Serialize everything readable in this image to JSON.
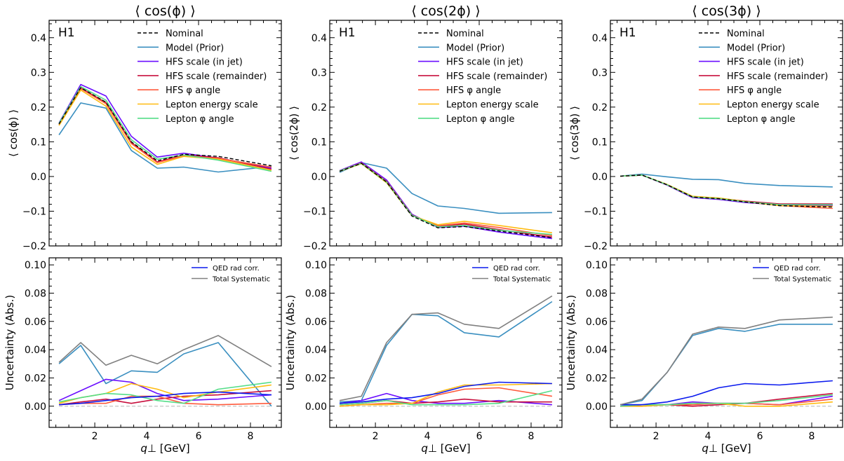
{
  "chart_data": {
    "type": "line",
    "x": [
      0.62,
      1.46,
      2.43,
      3.41,
      4.41,
      5.43,
      6.76,
      8.81
    ],
    "xlabel": "q⊥ [GeV]",
    "xlim": [
      0.24,
      9.19
    ],
    "xticks": [
      2,
      4,
      6,
      8
    ],
    "experiment_label": "H1",
    "colors": {
      "Nominal": "#000000",
      "Model (Prior)": "#3a8fc0",
      "HFS scale (in jet)": "#6a0dff",
      "HFS scale (remainder)": "#c8103e",
      "HFS φ angle": "#ff5a3c",
      "Lepton energy scale": "#ffbb11",
      "Lepton φ angle": "#55dd88",
      "QED rad corr.": "#0a1aee",
      "Total Systematic": "#808080",
      "zero_line": "#cccccc"
    },
    "panels": [
      {
        "title": "⟨ cos(ϕ) ⟩",
        "top": {
          "ylabel": "⟨ cos(ϕ) ⟩",
          "ylim": [
            -0.2,
            0.45
          ],
          "yticks": [
            -0.2,
            -0.1,
            0.0,
            0.1,
            0.2,
            0.3,
            0.4
          ],
          "ytick_labels": [
            "−0.2",
            "−0.1",
            "0.0",
            "0.1",
            "0.2",
            "0.3",
            "0.4"
          ],
          "legend": [
            "Nominal",
            "Model (Prior)",
            "HFS scale (in jet)",
            "HFS scale (remainder)",
            "HFS φ angle",
            "Lepton energy scale",
            "Lepton φ angle"
          ],
          "legend_position": "top-right",
          "series": [
            {
              "name": "Model (Prior)",
              "values": [
                0.12,
                0.212,
                0.197,
                0.075,
                0.024,
                0.027,
                0.013,
                0.029
              ]
            },
            {
              "name": "HFS scale (in jet)",
              "values": [
                0.154,
                0.265,
                0.232,
                0.116,
                0.056,
                0.067,
                0.053,
                0.024
              ]
            },
            {
              "name": "HFS scale (remainder)",
              "values": [
                0.15,
                0.255,
                0.213,
                0.098,
                0.042,
                0.062,
                0.054,
                0.021
              ]
            },
            {
              "name": "HFS φ angle",
              "values": [
                0.15,
                0.253,
                0.21,
                0.095,
                0.04,
                0.06,
                0.052,
                0.027
              ]
            },
            {
              "name": "Lepton energy scale",
              "values": [
                0.147,
                0.249,
                0.203,
                0.085,
                0.035,
                0.058,
                0.05,
                0.018
              ]
            },
            {
              "name": "Lepton φ angle",
              "values": [
                0.153,
                0.259,
                0.22,
                0.106,
                0.05,
                0.062,
                0.047,
                0.015
              ]
            },
            {
              "name": "Nominal",
              "values": [
                0.151,
                0.256,
                0.214,
                0.1,
                0.045,
                0.064,
                0.058,
                0.031
              ]
            }
          ]
        },
        "bottom": {
          "ylabel": "Uncertainty (Abs.)",
          "ylim": [
            -0.015,
            0.105
          ],
          "yticks": [
            0.0,
            0.02,
            0.04,
            0.06,
            0.08,
            0.1
          ],
          "ytick_labels": [
            "0.00",
            "0.02",
            "0.04",
            "0.06",
            "0.08",
            "0.10"
          ],
          "legend": [
            "QED rad corr.",
            "Total Systematic"
          ],
          "legend_position": "top-right",
          "series": [
            {
              "name": "Model (Prior)",
              "values": [
                0.03,
                0.043,
                0.016,
                0.025,
                0.024,
                0.037,
                0.045,
                0.0
              ]
            },
            {
              "name": "HFS scale (in jet)",
              "values": [
                0.004,
                0.011,
                0.019,
                0.017,
                0.009,
                0.004,
                0.005,
                0.008
              ]
            },
            {
              "name": "HFS scale (remainder)",
              "values": [
                0.001,
                0.003,
                0.005,
                0.002,
                0.005,
                0.007,
                0.008,
                0.011
              ]
            },
            {
              "name": "HFS φ angle",
              "values": [
                0.001,
                0.002,
                0.002,
                0.007,
                0.007,
                0.002,
                0.001,
                0.002
              ]
            },
            {
              "name": "Lepton energy scale",
              "values": [
                0.002,
                0.006,
                0.009,
                0.016,
                0.012,
                0.006,
                0.01,
                0.015
              ]
            },
            {
              "name": "Lepton φ angle",
              "values": [
                0.003,
                0.006,
                0.009,
                0.008,
                0.004,
                0.002,
                0.012,
                0.017
              ]
            },
            {
              "name": "QED rad corr.",
              "values": [
                0.001,
                0.002,
                0.004,
                0.006,
                0.007,
                0.009,
                0.01,
                0.008
              ]
            },
            {
              "name": "Total Systematic",
              "values": [
                0.031,
                0.045,
                0.029,
                0.036,
                0.03,
                0.04,
                0.05,
                0.028
              ]
            }
          ]
        }
      },
      {
        "title": "⟨ cos(2ϕ) ⟩",
        "top": {
          "ylabel": "⟨ cos(2ϕ) ⟩",
          "ylim": [
            -0.2,
            0.45
          ],
          "yticks": [
            -0.2,
            -0.1,
            0.0,
            0.1,
            0.2,
            0.3,
            0.4
          ],
          "ytick_labels": [
            "−0.2",
            "−0.1",
            "0.0",
            "0.1",
            "0.2",
            "0.3",
            "0.4"
          ],
          "legend": [
            "Nominal",
            "Model (Prior)",
            "HFS scale (in jet)",
            "HFS scale (remainder)",
            "HFS φ angle",
            "Lepton energy scale",
            "Lepton φ angle"
          ],
          "legend_position": "top-right",
          "series": [
            {
              "name": "Model (Prior)",
              "values": [
                0.012,
                0.04,
                0.024,
                -0.049,
                -0.085,
                -0.092,
                -0.106,
                -0.104
              ]
            },
            {
              "name": "HFS scale (in jet)",
              "values": [
                0.017,
                0.042,
                -0.01,
                -0.109,
                -0.147,
                -0.143,
                -0.16,
                -0.179
              ]
            },
            {
              "name": "HFS scale (remainder)",
              "values": [
                0.016,
                0.039,
                -0.014,
                -0.111,
                -0.144,
                -0.137,
                -0.153,
                -0.175
              ]
            },
            {
              "name": "HFS φ angle",
              "values": [
                0.016,
                0.039,
                -0.015,
                -0.112,
                -0.142,
                -0.134,
                -0.147,
                -0.171
              ]
            },
            {
              "name": "Lepton energy scale",
              "values": [
                0.015,
                0.037,
                -0.018,
                -0.113,
                -0.139,
                -0.129,
                -0.141,
                -0.162
              ]
            },
            {
              "name": "Lepton φ angle",
              "values": [
                0.016,
                0.038,
                -0.016,
                -0.112,
                -0.145,
                -0.141,
                -0.155,
                -0.167
              ]
            },
            {
              "name": "Nominal",
              "values": [
                0.015,
                0.038,
                -0.016,
                -0.114,
                -0.148,
                -0.144,
                -0.157,
                -0.176
              ]
            }
          ]
        },
        "bottom": {
          "ylabel": "Uncertainty (Abs.)",
          "ylim": [
            -0.015,
            0.105
          ],
          "yticks": [
            0.0,
            0.02,
            0.04,
            0.06,
            0.08,
            0.1
          ],
          "ytick_labels": [
            "0.00",
            "0.02",
            "0.04",
            "0.06",
            "0.08",
            "0.10"
          ],
          "legend": [
            "QED rad corr.",
            "Total Systematic"
          ],
          "legend_position": "top-right",
          "series": [
            {
              "name": "Model (Prior)",
              "values": [
                0.003,
                0.004,
                0.043,
                0.065,
                0.064,
                0.052,
                0.049,
                0.074
              ]
            },
            {
              "name": "HFS scale (in jet)",
              "values": [
                0.002,
                0.004,
                0.009,
                0.004,
                0.002,
                0.002,
                0.004,
                0.001
              ]
            },
            {
              "name": "HFS scale (remainder)",
              "values": [
                0.001,
                0.002,
                0.004,
                0.002,
                0.003,
                0.005,
                0.003,
                0.003
              ]
            },
            {
              "name": "HFS φ angle",
              "values": [
                0.0,
                0.001,
                0.002,
                0.002,
                0.008,
                0.012,
                0.013,
                0.007
              ]
            },
            {
              "name": "Lepton energy scale",
              "values": [
                0.0,
                0.001,
                0.001,
                0.002,
                0.01,
                0.015,
                0.015,
                0.016
              ]
            },
            {
              "name": "Lepton φ angle",
              "values": [
                0.001,
                0.002,
                0.004,
                0.001,
                0.001,
                0.001,
                0.002,
                0.011
              ]
            },
            {
              "name": "QED rad corr.",
              "values": [
                0.002,
                0.003,
                0.005,
                0.006,
                0.009,
                0.014,
                0.017,
                0.016
              ]
            },
            {
              "name": "Total Systematic",
              "values": [
                0.004,
                0.007,
                0.045,
                0.065,
                0.066,
                0.058,
                0.055,
                0.078
              ]
            }
          ]
        }
      },
      {
        "title": "⟨ cos(3ϕ) ⟩",
        "top": {
          "ylabel": "⟨ cos(3ϕ) ⟩",
          "ylim": [
            -0.2,
            0.45
          ],
          "yticks": [
            -0.2,
            -0.1,
            0.0,
            0.1,
            0.2,
            0.3,
            0.4
          ],
          "ytick_labels": [
            "−0.2",
            "−0.1",
            "0.0",
            "0.1",
            "0.2",
            "0.3",
            "0.4"
          ],
          "legend": [
            "Nominal",
            "Model (Prior)",
            "HFS scale (in jet)",
            "HFS scale (remainder)",
            "HFS φ angle",
            "Lepton energy scale",
            "Lepton φ angle"
          ],
          "legend_position": "top-right",
          "series": [
            {
              "name": "Model (Prior)",
              "values": [
                0.001,
                0.007,
                -0.001,
                -0.008,
                -0.009,
                -0.02,
                -0.026,
                -0.03
              ]
            },
            {
              "name": "HFS scale (in jet)",
              "values": [
                0.001,
                0.004,
                -0.025,
                -0.061,
                -0.066,
                -0.075,
                -0.082,
                -0.083
              ]
            },
            {
              "name": "HFS scale (remainder)",
              "values": [
                0.001,
                0.004,
                -0.024,
                -0.059,
                -0.063,
                -0.071,
                -0.079,
                -0.079
              ]
            },
            {
              "name": "HFS φ angle",
              "values": [
                0.001,
                0.004,
                -0.024,
                -0.059,
                -0.064,
                -0.073,
                -0.084,
                -0.092
              ]
            },
            {
              "name": "Lepton energy scale",
              "values": [
                0.001,
                0.004,
                -0.023,
                -0.057,
                -0.062,
                -0.072,
                -0.084,
                -0.086
              ]
            },
            {
              "name": "Lepton φ angle",
              "values": [
                0.001,
                0.004,
                -0.024,
                -0.059,
                -0.064,
                -0.073,
                -0.081,
                -0.081
              ]
            },
            {
              "name": "Nominal",
              "values": [
                0.001,
                0.004,
                -0.024,
                -0.059,
                -0.064,
                -0.073,
                -0.084,
                -0.088
              ]
            }
          ]
        },
        "bottom": {
          "ylabel": "Uncertainty (Abs.)",
          "ylim": [
            -0.015,
            0.105
          ],
          "yticks": [
            0.0,
            0.02,
            0.04,
            0.06,
            0.08,
            0.1
          ],
          "ytick_labels": [
            "0.00",
            "0.02",
            "0.04",
            "0.06",
            "0.08",
            "0.10"
          ],
          "legend": [
            "QED rad corr.",
            "Total Systematic"
          ],
          "legend_position": "top-right",
          "series": [
            {
              "name": "Model (Prior)",
              "values": [
                0.001,
                0.004,
                0.024,
                0.05,
                0.055,
                0.053,
                0.058,
                0.058
              ]
            },
            {
              "name": "HFS scale (in jet)",
              "values": [
                0.001,
                0.001,
                0.001,
                0.003,
                0.002,
                0.002,
                0.001,
                0.007
              ]
            },
            {
              "name": "HFS scale (remainder)",
              "values": [
                0.0,
                0.001,
                0.001,
                0.0,
                0.001,
                0.002,
                0.005,
                0.009
              ]
            },
            {
              "name": "HFS φ angle",
              "values": [
                0.0,
                0.0,
                0.001,
                0.001,
                0.002,
                0.002,
                0.001,
                0.005
              ]
            },
            {
              "name": "Lepton energy scale",
              "values": [
                0.0,
                0.0,
                0.001,
                0.002,
                0.002,
                0.0,
                0.0,
                0.003
              ]
            },
            {
              "name": "Lepton φ angle",
              "values": [
                0.0,
                0.001,
                0.001,
                0.002,
                0.002,
                0.002,
                0.004,
                0.008
              ]
            },
            {
              "name": "QED rad corr.",
              "values": [
                0.001,
                0.001,
                0.003,
                0.007,
                0.013,
                0.016,
                0.015,
                0.018
              ]
            },
            {
              "name": "Total Systematic",
              "values": [
                0.001,
                0.005,
                0.024,
                0.051,
                0.056,
                0.055,
                0.061,
                0.063
              ]
            }
          ]
        }
      }
    ]
  }
}
